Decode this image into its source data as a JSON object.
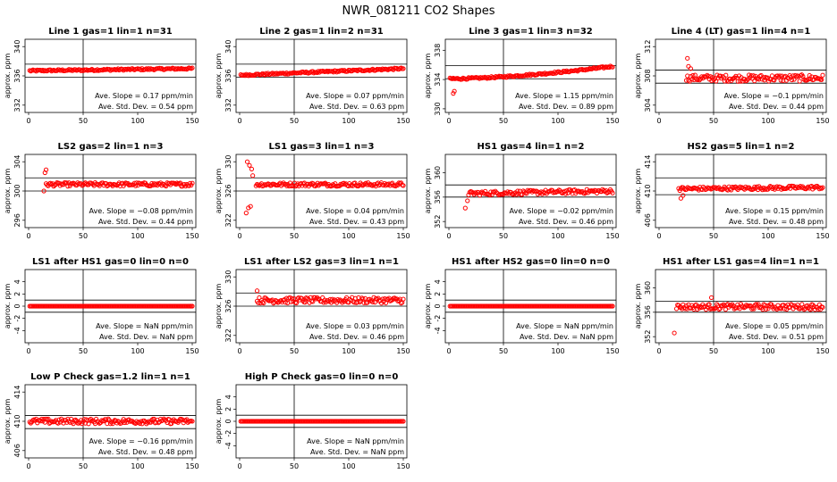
{
  "title": "NWR_081211  CO2 Shapes",
  "colors": {
    "points": "#ff0000",
    "axes": "#000000",
    "background": "#ffffff"
  },
  "chart_data": [
    {
      "type": "scatter",
      "title": "Line 1 gas=1 lin=1 n=31",
      "ylabel": "approx. ppm",
      "xlim": [
        0,
        150
      ],
      "ylim": [
        331,
        341
      ],
      "xticks": [
        0,
        50,
        100,
        150
      ],
      "yticks": [
        332,
        336,
        340
      ],
      "ref_lines": [
        337.6,
        335.8
      ],
      "vline": 50,
      "x_range": [
        1,
        150
      ],
      "n_points": 150,
      "start": 336.7,
      "end": 337.0,
      "noise": 0.12,
      "slope_text": "Ave. Slope =  0.17  ppm/min",
      "std_text": "Ave. Std. Dev. =  0.54  ppm"
    },
    {
      "type": "scatter",
      "title": "Line 2 gas=1 lin=2 n=31",
      "ylabel": "approx. ppm",
      "xlim": [
        0,
        150
      ],
      "ylim": [
        331,
        341
      ],
      "xticks": [
        0,
        50,
        100,
        150
      ],
      "yticks": [
        332,
        336,
        340
      ],
      "ref_lines": [
        337.6,
        335.8
      ],
      "vline": 50,
      "x_range": [
        1,
        150
      ],
      "n_points": 150,
      "start": 336.1,
      "end": 337.0,
      "noise": 0.12,
      "slope_text": "Ave. Slope =  0.07  ppm/min",
      "std_text": "Ave. Std. Dev. =  0.63  ppm"
    },
    {
      "type": "scatter",
      "title": "Line 3 gas=1 lin=3 n=32",
      "ylabel": "approx. ppm",
      "xlim": [
        0,
        150
      ],
      "ylim": [
        329.5,
        339.5
      ],
      "xticks": [
        0,
        50,
        100,
        150
      ],
      "yticks": [
        330,
        334,
        338
      ],
      "ref_lines": [
        335.9,
        334.1
      ],
      "vline": 50,
      "x_range": [
        1,
        150
      ],
      "n_points": 150,
      "start": 334.1,
      "end": 335.8,
      "noise": 0.12,
      "curve": "rise",
      "extra_points": [
        {
          "x": 4,
          "y": 332.1
        },
        {
          "x": 5,
          "y": 332.4
        },
        {
          "x": 4,
          "y": 334.2
        }
      ],
      "slope_text": "Ave. Slope =  1.15  ppm/min",
      "std_text": "Ave. Std. Dev. =  0.89  ppm"
    },
    {
      "type": "scatter",
      "title": "Line 4 (LT) gas=1 lin=4 n=1",
      "ylabel": "approx. ppm",
      "xlim": [
        0,
        150
      ],
      "ylim": [
        303,
        313
      ],
      "xticks": [
        0,
        50,
        100,
        150
      ],
      "yticks": [
        304,
        308,
        312
      ],
      "ref_lines": [
        308.8,
        307.0
      ],
      "vline": 50,
      "x_range": [
        25,
        150
      ],
      "n_points": 125,
      "start": 307.7,
      "end": 307.7,
      "noise": 0.45,
      "extra_points": [
        {
          "x": 26,
          "y": 310.4
        },
        {
          "x": 27,
          "y": 309.3
        },
        {
          "x": 29,
          "y": 309.0
        }
      ],
      "slope_text": "Ave. Slope =  −0.1  ppm/min",
      "std_text": "Ave. Std. Dev. =  0.44  ppm"
    },
    {
      "type": "scatter",
      "title": "LS2 gas=2 lin=1 n=3",
      "ylabel": "approx. ppm",
      "xlim": [
        0,
        150
      ],
      "ylim": [
        295,
        305
      ],
      "xticks": [
        0,
        50,
        100,
        150
      ],
      "yticks": [
        296,
        300,
        304
      ],
      "ref_lines": [
        301.8,
        300.0
      ],
      "vline": 50,
      "x_range": [
        16,
        150
      ],
      "n_points": 135,
      "start": 300.9,
      "end": 300.9,
      "noise": 0.25,
      "extra_points": [
        {
          "x": 14,
          "y": 300.0
        },
        {
          "x": 15,
          "y": 302.5
        },
        {
          "x": 16,
          "y": 302.9
        }
      ],
      "slope_text": "Ave. Slope =  −0.08  ppm/min",
      "std_text": "Ave. Std. Dev. =  0.44  ppm"
    },
    {
      "type": "scatter",
      "title": "LS1 gas=3 lin=1 n=3",
      "ylabel": "approx. ppm",
      "xlim": [
        0,
        150
      ],
      "ylim": [
        321,
        331
      ],
      "xticks": [
        0,
        50,
        100,
        150
      ],
      "yticks": [
        322,
        326,
        330
      ],
      "ref_lines": [
        327.8,
        326.0
      ],
      "vline": 50,
      "x_range": [
        15,
        150
      ],
      "n_points": 135,
      "start": 326.9,
      "end": 326.9,
      "noise": 0.25,
      "extra_points": [
        {
          "x": 6,
          "y": 323.0
        },
        {
          "x": 8,
          "y": 323.7
        },
        {
          "x": 10,
          "y": 323.9
        },
        {
          "x": 7,
          "y": 330.0
        },
        {
          "x": 9,
          "y": 329.5
        },
        {
          "x": 11,
          "y": 329.0
        },
        {
          "x": 12,
          "y": 328.1
        }
      ],
      "slope_text": "Ave. Slope =  0.04  ppm/min",
      "std_text": "Ave. Std. Dev. =  0.43  ppm"
    },
    {
      "type": "scatter",
      "title": "HS1 gas=4 lin=1 n=2",
      "ylabel": "approx. ppm",
      "xlim": [
        0,
        150
      ],
      "ylim": [
        351,
        363
      ],
      "xticks": [
        0,
        50,
        100,
        150
      ],
      "yticks": [
        352,
        356,
        360
      ],
      "ref_lines": [
        358.0,
        356.0
      ],
      "vline": 50,
      "x_range": [
        18,
        150
      ],
      "n_points": 130,
      "start": 356.6,
      "end": 357.0,
      "noise": 0.35,
      "extra_points": [
        {
          "x": 15,
          "y": 354.2
        },
        {
          "x": 17,
          "y": 355.4
        }
      ],
      "slope_text": "Ave. Slope =  −0.02  ppm/min",
      "std_text": "Ave. Std. Dev. =  0.46  ppm"
    },
    {
      "type": "scatter",
      "title": "HS2 gas=5 lin=1 n=2",
      "ylabel": "approx. ppm",
      "xlim": [
        0,
        150
      ],
      "ylim": [
        405,
        415
      ],
      "xticks": [
        0,
        50,
        100,
        150
      ],
      "yticks": [
        406,
        410,
        414
      ],
      "ref_lines": [
        411.8,
        409.5
      ],
      "vline": 50,
      "x_range": [
        18,
        150
      ],
      "n_points": 130,
      "start": 410.3,
      "end": 410.5,
      "noise": 0.25,
      "extra_points": [
        {
          "x": 20,
          "y": 409.0
        },
        {
          "x": 22,
          "y": 409.4
        }
      ],
      "slope_text": "Ave. Slope =  0.15  ppm/min",
      "std_text": "Ave. Std. Dev. =  0.48  ppm"
    },
    {
      "type": "scatter",
      "title": "LS1 after HS1 gas=0 lin=0 n=0",
      "ylabel": "approx. ppm",
      "xlim": [
        0,
        150
      ],
      "ylim": [
        -6,
        6
      ],
      "xticks": [
        0,
        50,
        100,
        150
      ],
      "yticks": [
        -4,
        -2,
        0,
        2,
        4
      ],
      "ref_lines": [
        1,
        -1
      ],
      "vline": 50,
      "x_range": [
        1,
        150
      ],
      "n_points": 150,
      "start": 0,
      "end": 0,
      "noise": 0,
      "slope_text": "Ave. Slope =   NaN  ppm/min",
      "std_text": "Ave. Std. Dev. =   NaN  ppm"
    },
    {
      "type": "scatter",
      "title": "LS1 after LS2 gas=3 lin=1 n=1",
      "ylabel": "approx. ppm",
      "xlim": [
        0,
        150
      ],
      "ylim": [
        321,
        331
      ],
      "xticks": [
        0,
        50,
        100,
        150
      ],
      "yticks": [
        322,
        326,
        330
      ],
      "ref_lines": [
        327.8,
        326.0
      ],
      "vline": 50,
      "x_range": [
        16,
        150
      ],
      "n_points": 135,
      "start": 326.8,
      "end": 326.8,
      "noise": 0.4,
      "extra_points": [
        {
          "x": 16,
          "y": 328.1
        }
      ],
      "slope_text": "Ave. Slope =  0.03  ppm/min",
      "std_text": "Ave. Std. Dev. =  0.46  ppm"
    },
    {
      "type": "scatter",
      "title": "HS1 after HS2 gas=0 lin=0 n=0",
      "ylabel": "approx. ppm",
      "xlim": [
        0,
        150
      ],
      "ylim": [
        -6,
        6
      ],
      "xticks": [
        0,
        50,
        100,
        150
      ],
      "yticks": [
        -4,
        -2,
        0,
        2,
        4
      ],
      "ref_lines": [
        1,
        -1
      ],
      "vline": 50,
      "x_range": [
        1,
        150
      ],
      "n_points": 150,
      "start": 0,
      "end": 0,
      "noise": 0,
      "slope_text": "Ave. Slope =   NaN  ppm/min",
      "std_text": "Ave. Std. Dev. =   NaN  ppm"
    },
    {
      "type": "scatter",
      "title": "HS1 after LS1 gas=4 lin=1 n=1",
      "ylabel": "approx. ppm",
      "xlim": [
        0,
        150
      ],
      "ylim": [
        351,
        363
      ],
      "xticks": [
        0,
        50,
        100,
        150
      ],
      "yticks": [
        352,
        356,
        360
      ],
      "ref_lines": [
        357.8,
        356.0
      ],
      "vline": 50,
      "x_range": [
        16,
        150
      ],
      "n_points": 135,
      "start": 356.9,
      "end": 356.9,
      "noise": 0.45,
      "extra_points": [
        {
          "x": 14,
          "y": 352.6
        },
        {
          "x": 48,
          "y": 358.4
        }
      ],
      "slope_text": "Ave. Slope =  0.05  ppm/min",
      "std_text": "Ave. Std. Dev. =  0.51  ppm"
    },
    {
      "type": "scatter",
      "title": "Low P Check gas=1.2 lin=1 n=1",
      "ylabel": "approx. ppm",
      "xlim": [
        0,
        150
      ],
      "ylim": [
        405,
        415
      ],
      "xticks": [
        0,
        50,
        100,
        150
      ],
      "yticks": [
        406,
        410,
        414
      ],
      "ref_lines": [
        410.8,
        409.0
      ],
      "vline": 50,
      "x_range": [
        1,
        150
      ],
      "n_points": 150,
      "start": 410.0,
      "end": 410.0,
      "noise": 0.35,
      "slope_text": "Ave. Slope =  −0.16  ppm/min",
      "std_text": "Ave. Std. Dev. =  0.48  ppm"
    },
    {
      "type": "scatter",
      "title": "High P Check gas=0 lin=0 n=0",
      "ylabel": "approx. ppm",
      "xlim": [
        0,
        150
      ],
      "ylim": [
        -6,
        6
      ],
      "xticks": [
        0,
        50,
        100,
        150
      ],
      "yticks": [
        -4,
        -2,
        0,
        2,
        4
      ],
      "ref_lines": [
        1,
        -1
      ],
      "vline": 50,
      "x_range": [
        1,
        150
      ],
      "n_points": 150,
      "start": 0,
      "end": 0,
      "noise": 0,
      "slope_text": "Ave. Slope =   NaN  ppm/min",
      "std_text": "Ave. Std. Dev. =   NaN  ppm"
    }
  ]
}
